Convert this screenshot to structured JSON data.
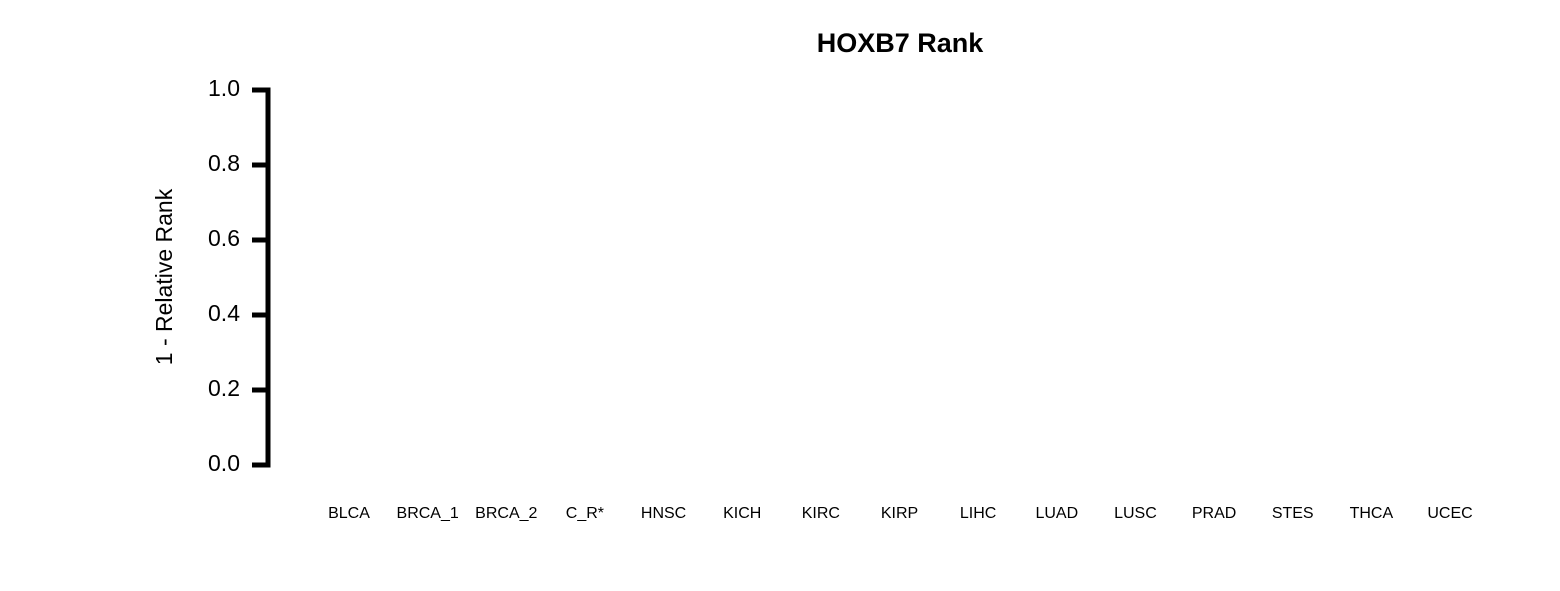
{
  "chart_data": {
    "type": "bar",
    "title": "HOXB7 Rank",
    "ylabel": "1 - Relative Rank",
    "categories": [
      "BLCA",
      "BRCA_1",
      "BRCA_2",
      "C_R*",
      "HNSC",
      "KICH",
      "KIRC",
      "KIRP",
      "LIHC",
      "LUAD",
      "LUSC",
      "PRAD",
      "STES",
      "THCA",
      "UCEC"
    ],
    "ylim": [
      0,
      1
    ],
    "yticks": [
      {
        "value": 0,
        "label": "0.0"
      },
      0.2,
      0.4,
      0.6,
      0.8,
      {
        "value": 1,
        "label": "1.0"
      }
    ]
  }
}
